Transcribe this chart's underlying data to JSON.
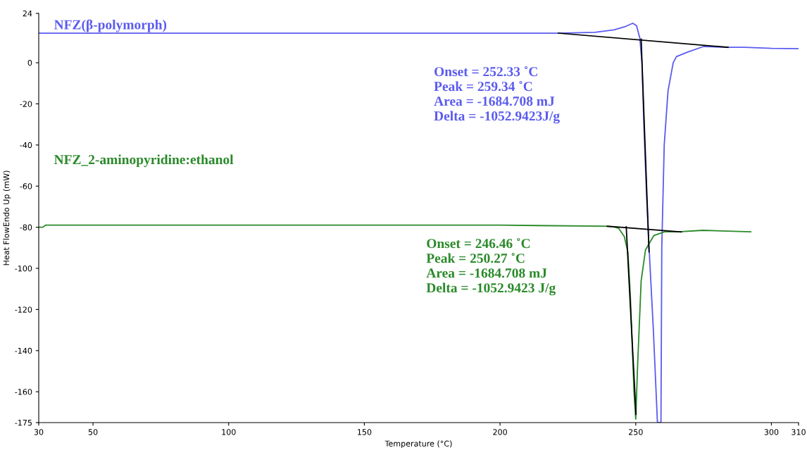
{
  "chart_data": {
    "type": "line",
    "xlabel": "Temperature (°C)",
    "ylabel": "Heat FlowEndo Up (mW)",
    "xlim": [
      30,
      310
    ],
    "xticks": [
      30,
      50,
      100,
      150,
      200,
      250,
      300,
      310
    ],
    "ylim": [
      -175,
      24
    ],
    "yticks": [
      24,
      0,
      -20,
      -40,
      -60,
      -80,
      -100,
      -120,
      -140,
      -160,
      -175
    ],
    "grid": false,
    "legend": false,
    "marker": "none",
    "line_style": "solid",
    "series": [
      {
        "name": "NFZ(β-polymorph)",
        "color": "#5b5bf0",
        "x": [
          30,
          100,
          200,
          221.5,
          235,
          242,
          246,
          248.9,
          250.3,
          251.5,
          252.3,
          253,
          254,
          255,
          256.5,
          258,
          258.6,
          259.3,
          259.6,
          260.5,
          261.9,
          263.8,
          265,
          269,
          275,
          284,
          290,
          300,
          310
        ],
        "values": [
          14.4,
          14.4,
          14.4,
          14.4,
          14.8,
          16,
          17.5,
          19.2,
          18,
          12,
          0,
          -30,
          -65,
          -92,
          -130,
          -175,
          -175,
          -175,
          -90,
          -40,
          -13.7,
          0,
          3,
          5.1,
          7.9,
          7.5,
          7.5,
          7,
          6.8
        ]
      },
      {
        "name": "NFZ_2-aminopyridine:ethanol",
        "color": "#2a8a2a",
        "x": [
          30,
          31.5,
          32.5,
          100,
          200,
          238.5,
          242,
          243.7,
          245.8,
          247.1,
          248,
          249.4,
          250,
          250.7,
          252,
          253.6,
          256.7,
          260.6,
          265.7,
          274.8,
          292.4
        ],
        "values": [
          -80,
          -80,
          -79,
          -79,
          -79,
          -79.5,
          -79.8,
          -80.5,
          -84.6,
          -92,
          -113,
          -161,
          -173.3,
          -147,
          -106,
          -91,
          -84,
          -82.2,
          -82.2,
          -81.5,
          -82.2
        ]
      },
      {
        "color": "#000000",
        "x": [
          221.5,
          284
        ],
        "values": [
          14.4,
          7.5
        ]
      },
      {
        "color": "#000000",
        "x": [
          252.0,
          254.9
        ],
        "values": [
          11.5,
          -92
        ]
      },
      {
        "color": "#000000",
        "x": [
          239.5,
          266.8
        ],
        "values": [
          -79.5,
          -82.3
        ]
      },
      {
        "color": "#000000",
        "x": [
          246.5,
          250.1
        ],
        "values": [
          -79.8,
          -171
        ]
      }
    ],
    "annotations": [
      "Onset = 252.33 ˚C\nPeak = 259.34 ˚C\nArea = -1684.708 mJ\nDelta = -1052.9423J/g",
      "Onset = 246.46 ˚C\nPeak = 250.27 ˚C\nArea = -1684.708 mJ\nDelta = -1052.9423 J/g"
    ]
  }
}
